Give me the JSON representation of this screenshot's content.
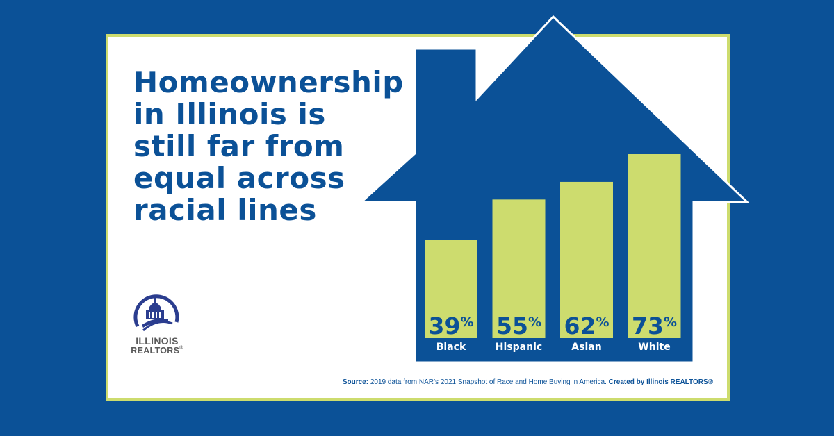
{
  "headline": "Homeownership in Illinois is still far from equal across racial lines",
  "logo": {
    "line1": "ILLINOIS",
    "line2": "REALTORS",
    "mark": "®"
  },
  "source": {
    "lead": "Source:",
    "body": " 2019 data from NAR’s 2021 Snapshot of Race and Home Buying in America. ",
    "credit": "Created by Illinois REALTORS®"
  },
  "colors": {
    "background": "#0b5197",
    "card": "#ffffff",
    "border": "#cddc6e",
    "house": "#0b5197",
    "bar": "#cddc6e"
  },
  "icons": [
    "capitol-dome-icon",
    "house-silhouette-icon"
  ],
  "chart_data": {
    "type": "bar",
    "categories": [
      "Black",
      "Hispanic",
      "Asian",
      "White"
    ],
    "values": [
      39,
      55,
      62,
      73
    ],
    "value_labels": [
      "39",
      "55",
      "62",
      "73"
    ],
    "unit": "%",
    "title": "",
    "xlabel": "",
    "ylabel": "",
    "ylim": [
      0,
      100
    ],
    "grid": false,
    "legend": "none"
  }
}
